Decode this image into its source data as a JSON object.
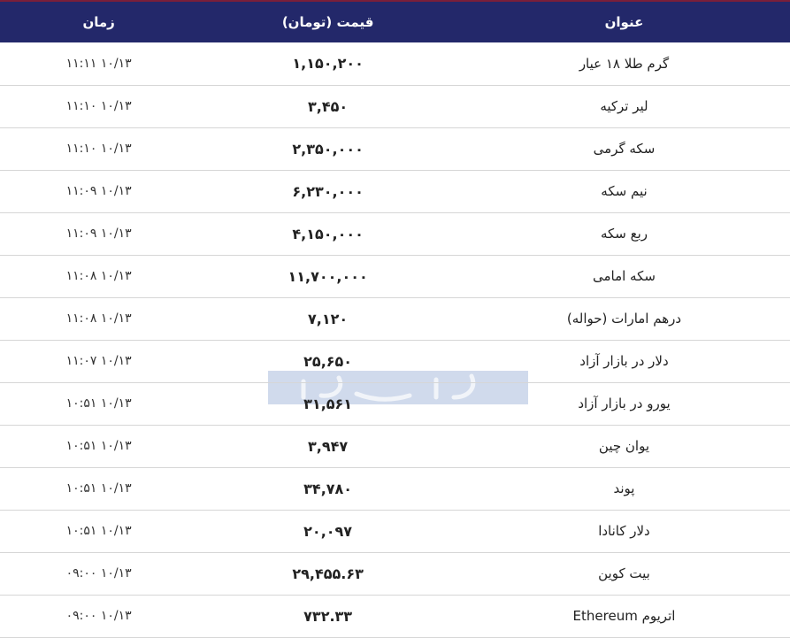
{
  "header": {
    "title_col": "عنوان",
    "price_col": "قیمت (تومان)",
    "time_col": "زمان"
  },
  "rows": [
    {
      "title": "گرم طلا ۱۸ عیار",
      "price": "۱,۱۵۰,۲۰۰",
      "time": "۱۱:۱۱ ۱۰/۱۳"
    },
    {
      "title": "لیر ترکیه",
      "price": "۳,۴۵۰",
      "time": "۱۱:۱۰ ۱۰/۱۳"
    },
    {
      "title": "سکه گرمی",
      "price": "۲,۳۵۰,۰۰۰",
      "time": "۱۱:۱۰ ۱۰/۱۳"
    },
    {
      "title": "نیم سکه",
      "price": "۶,۲۳۰,۰۰۰",
      "time": "۱۱:۰۹ ۱۰/۱۳"
    },
    {
      "title": "ربع سکه",
      "price": "۴,۱۵۰,۰۰۰",
      "time": "۱۱:۰۹ ۱۰/۱۳"
    },
    {
      "title": "سکه امامی",
      "price": "۱۱,۷۰۰,۰۰۰",
      "time": "۱۱:۰۸ ۱۰/۱۳"
    },
    {
      "title": "درهم امارات (حواله)",
      "price": "۷,۱۲۰",
      "time": "۱۱:۰۸ ۱۰/۱۳"
    },
    {
      "title": "دلار در بازار آزاد",
      "price": "۲۵,۶۵۰",
      "time": "۱۱:۰۷ ۱۰/۱۳"
    },
    {
      "title": "یورو در بازار آزاد",
      "price": "۳۱,۵۶۱",
      "time": "۱۰:۵۱ ۱۰/۱۳"
    },
    {
      "title": "یوان چین",
      "price": "۳,۹۴۷",
      "time": "۱۰:۵۱ ۱۰/۱۳"
    },
    {
      "title": "پوند",
      "price": "۳۴,۷۸۰",
      "time": "۱۰:۵۱ ۱۰/۱۳"
    },
    {
      "title": "دلار کانادا",
      "price": "۲۰,۰۹۷",
      "time": "۱۰:۵۱ ۱۰/۱۳"
    },
    {
      "title": "بیت کوین",
      "price": "۲۹,۴۵۵.۶۳",
      "time": "۰۹:۰۰ ۱۰/۱۳"
    },
    {
      "title": "اتریوم Ethereum",
      "price": "۷۳۲.۳۳",
      "time": "۰۹:۰۰ ۱۰/۱۳"
    }
  ],
  "watermark": "دنیای اقتصاد",
  "colors": {
    "header_bg": "#23286a",
    "accent_line": "#7a1f3a"
  }
}
